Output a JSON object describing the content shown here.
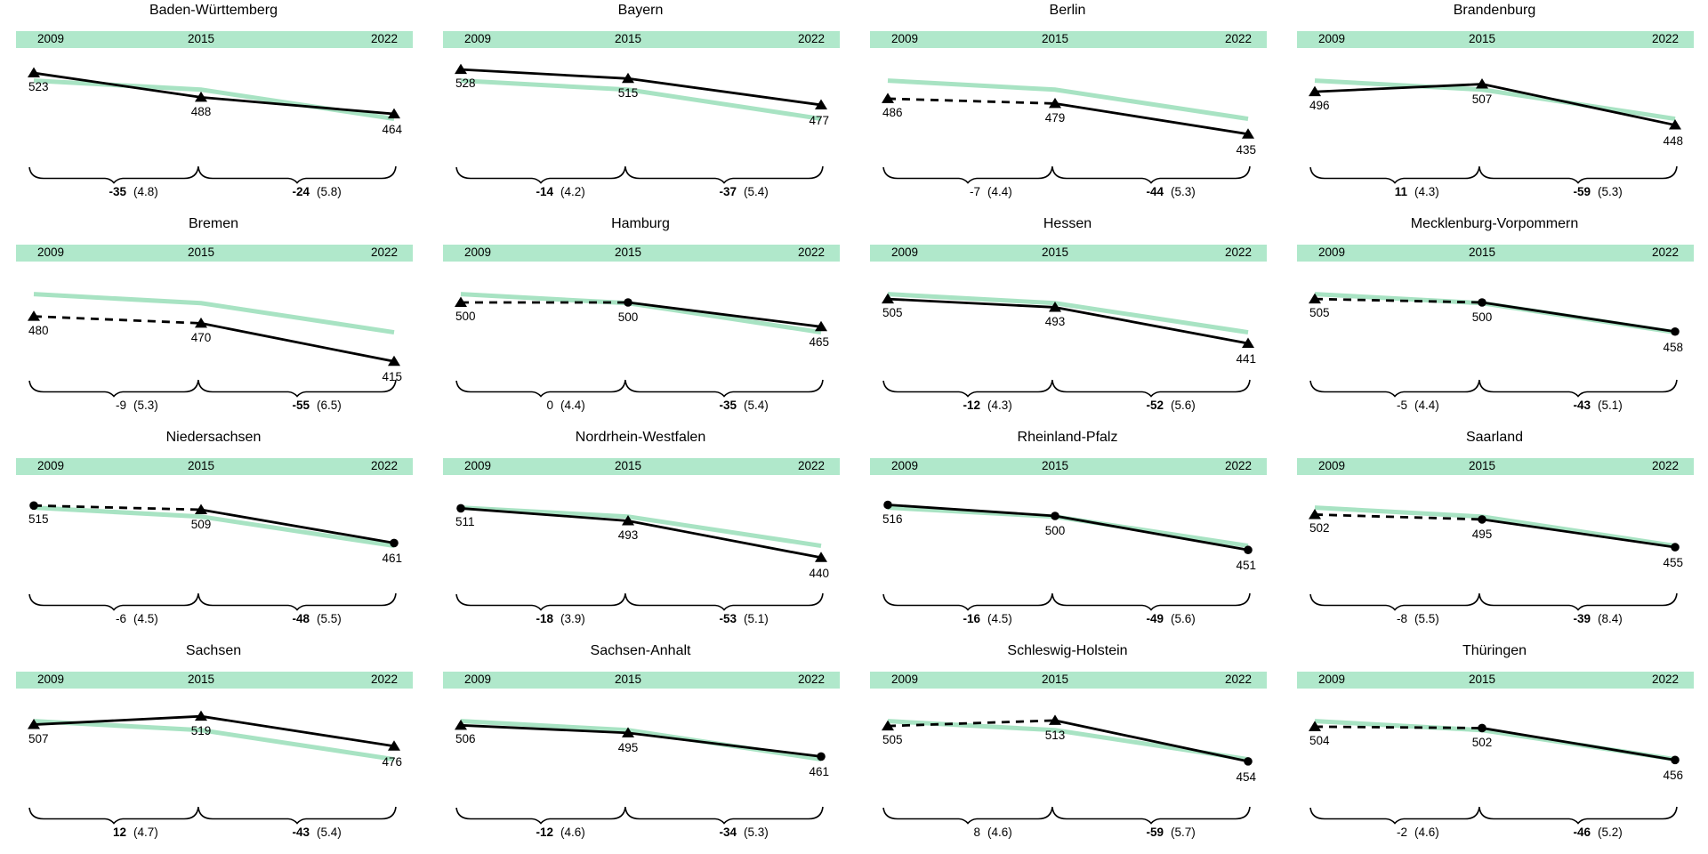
{
  "accent_colors": {
    "header_bar_green": "#b0e8cb",
    "reference_line_green": "#a8e3c3",
    "state_line_black": "#000000"
  },
  "chart_data": {
    "type": "line",
    "x_labels": [
      "2009",
      "2015",
      "2022"
    ],
    "legend": "none",
    "grid": "off",
    "y_scale_estimated_range": [
      410,
      535
    ],
    "germany_reference_line": {
      "color": "#a8e3c3",
      "values_estimated": [
        512,
        499,
        457
      ]
    },
    "panels": [
      {
        "title": "Baden-Württemberg",
        "values": [
          523,
          488,
          464
        ],
        "markers": [
          "triangle",
          "triangle",
          "triangle"
        ],
        "dashed_2009_2015": false,
        "changes": [
          {
            "diff": "-35",
            "se": "(4.8)",
            "bold": true
          },
          {
            "diff": "-24",
            "se": "(5.8)",
            "bold": true
          }
        ]
      },
      {
        "title": "Bayern",
        "values": [
          528,
          515,
          477
        ],
        "markers": [
          "triangle",
          "triangle",
          "triangle"
        ],
        "dashed_2009_2015": false,
        "changes": [
          {
            "diff": "-14",
            "se": "(4.2)",
            "bold": true
          },
          {
            "diff": "-37",
            "se": "(5.4)",
            "bold": true
          }
        ]
      },
      {
        "title": "Berlin",
        "values": [
          486,
          479,
          435
        ],
        "markers": [
          "triangle",
          "triangle",
          "triangle"
        ],
        "dashed_2009_2015": true,
        "changes": [
          {
            "diff": "-7",
            "se": "(4.4)",
            "bold": false
          },
          {
            "diff": "-44",
            "se": "(5.3)",
            "bold": true
          }
        ]
      },
      {
        "title": "Brandenburg",
        "values": [
          496,
          507,
          448
        ],
        "markers": [
          "triangle",
          "triangle",
          "triangle"
        ],
        "dashed_2009_2015": false,
        "changes": [
          {
            "diff": "11",
            "se": "(4.3)",
            "bold": true
          },
          {
            "diff": "-59",
            "se": "(5.3)",
            "bold": true
          }
        ]
      },
      {
        "title": "Bremen",
        "values": [
          480,
          470,
          415
        ],
        "markers": [
          "triangle",
          "triangle",
          "triangle"
        ],
        "dashed_2009_2015": true,
        "changes": [
          {
            "diff": "-9",
            "se": "(5.3)",
            "bold": false
          },
          {
            "diff": "-55",
            "se": "(6.5)",
            "bold": true
          }
        ]
      },
      {
        "title": "Hamburg",
        "values": [
          500,
          500,
          465
        ],
        "markers": [
          "triangle",
          "circle",
          "triangle"
        ],
        "dashed_2009_2015": true,
        "changes": [
          {
            "diff": "0",
            "se": "(4.4)",
            "bold": false
          },
          {
            "diff": "-35",
            "se": "(5.4)",
            "bold": true
          }
        ]
      },
      {
        "title": "Hessen",
        "values": [
          505,
          493,
          441
        ],
        "markers": [
          "triangle",
          "triangle",
          "triangle"
        ],
        "dashed_2009_2015": false,
        "changes": [
          {
            "diff": "-12",
            "se": "(4.3)",
            "bold": true
          },
          {
            "diff": "-52",
            "se": "(5.6)",
            "bold": true
          }
        ]
      },
      {
        "title": "Mecklenburg-Vorpommern",
        "values": [
          505,
          500,
          458
        ],
        "markers": [
          "triangle",
          "circle",
          "circle"
        ],
        "dashed_2009_2015": true,
        "changes": [
          {
            "diff": "-5",
            "se": "(4.4)",
            "bold": false
          },
          {
            "diff": "-43",
            "se": "(5.1)",
            "bold": true
          }
        ]
      },
      {
        "title": "Niedersachsen",
        "values": [
          515,
          509,
          461
        ],
        "markers": [
          "circle",
          "triangle",
          "circle"
        ],
        "dashed_2009_2015": true,
        "changes": [
          {
            "diff": "-6",
            "se": "(4.5)",
            "bold": false
          },
          {
            "diff": "-48",
            "se": "(5.5)",
            "bold": true
          }
        ]
      },
      {
        "title": "Nordrhein-Westfalen",
        "values": [
          511,
          493,
          440
        ],
        "markers": [
          "circle",
          "triangle",
          "triangle"
        ],
        "dashed_2009_2015": false,
        "changes": [
          {
            "diff": "-18",
            "se": "(3.9)",
            "bold": true
          },
          {
            "diff": "-53",
            "se": "(5.1)",
            "bold": true
          }
        ]
      },
      {
        "title": "Rheinland-Pfalz",
        "values": [
          516,
          500,
          451
        ],
        "markers": [
          "circle",
          "circle",
          "circle"
        ],
        "dashed_2009_2015": false,
        "changes": [
          {
            "diff": "-16",
            "se": "(4.5)",
            "bold": true
          },
          {
            "diff": "-49",
            "se": "(5.6)",
            "bold": true
          }
        ]
      },
      {
        "title": "Saarland",
        "values": [
          502,
          495,
          455
        ],
        "markers": [
          "triangle",
          "circle",
          "circle"
        ],
        "dashed_2009_2015": true,
        "changes": [
          {
            "diff": "-8",
            "se": "(5.5)",
            "bold": false
          },
          {
            "diff": "-39",
            "se": "(8.4)",
            "bold": true
          }
        ]
      },
      {
        "title": "Sachsen",
        "values": [
          507,
          519,
          476
        ],
        "markers": [
          "triangle",
          "triangle",
          "triangle"
        ],
        "dashed_2009_2015": false,
        "changes": [
          {
            "diff": "12",
            "se": "(4.7)",
            "bold": true
          },
          {
            "diff": "-43",
            "se": "(5.4)",
            "bold": true
          }
        ]
      },
      {
        "title": "Sachsen-Anhalt",
        "values": [
          506,
          495,
          461
        ],
        "markers": [
          "triangle",
          "triangle",
          "circle"
        ],
        "dashed_2009_2015": false,
        "changes": [
          {
            "diff": "-12",
            "se": "(4.6)",
            "bold": true
          },
          {
            "diff": "-34",
            "se": "(5.3)",
            "bold": true
          }
        ]
      },
      {
        "title": "Schleswig-Holstein",
        "values": [
          505,
          513,
          454
        ],
        "markers": [
          "triangle",
          "triangle",
          "circle"
        ],
        "dashed_2009_2015": true,
        "changes": [
          {
            "diff": "8",
            "se": "(4.6)",
            "bold": false
          },
          {
            "diff": "-59",
            "se": "(5.7)",
            "bold": true
          }
        ]
      },
      {
        "title": "Thüringen",
        "values": [
          504,
          502,
          456
        ],
        "markers": [
          "triangle",
          "circle",
          "circle"
        ],
        "dashed_2009_2015": true,
        "changes": [
          {
            "diff": "-2",
            "se": "(4.6)",
            "bold": false
          },
          {
            "diff": "-46",
            "se": "(5.2)",
            "bold": true
          }
        ]
      }
    ]
  }
}
